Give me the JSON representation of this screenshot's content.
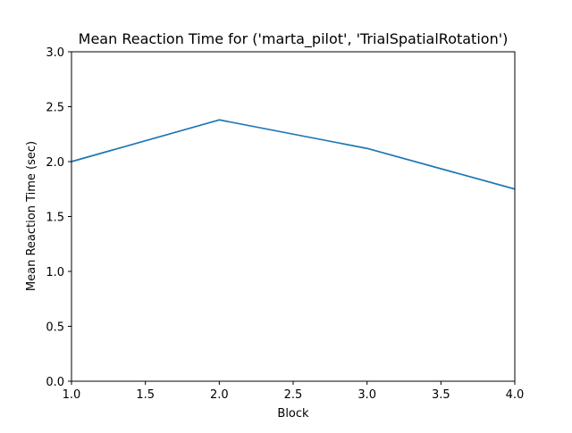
{
  "chart_data": {
    "type": "line",
    "title": "Mean Reaction Time for ('marta_pilot', 'TrialSpatialRotation')",
    "xlabel": "Block",
    "ylabel": "Mean Reaction Time (sec)",
    "xlim": [
      1.0,
      4.0
    ],
    "ylim": [
      0.0,
      3.0
    ],
    "x_ticks": [
      "1.0",
      "1.5",
      "2.0",
      "2.5",
      "3.0",
      "3.5",
      "4.0"
    ],
    "y_ticks": [
      "0.0",
      "0.5",
      "1.0",
      "1.5",
      "2.0",
      "2.5",
      "3.0"
    ],
    "grid": false,
    "series": [
      {
        "color": "#1f77b4",
        "x": [
          1.0,
          2.0,
          3.0,
          4.0
        ],
        "y": [
          2.0,
          2.38,
          2.12,
          1.75
        ]
      }
    ]
  }
}
